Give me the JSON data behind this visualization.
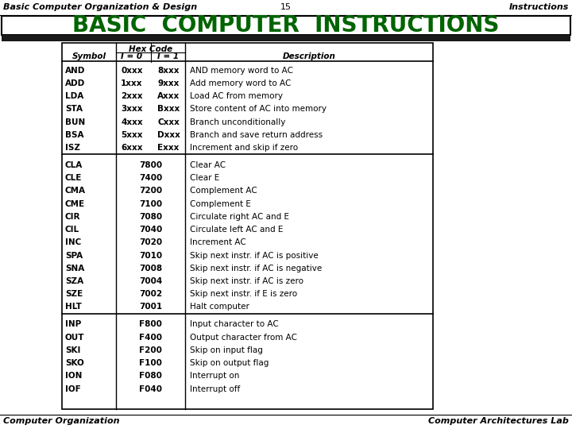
{
  "title_left": "Basic Computer Organization & Design",
  "title_center": "15",
  "title_right": "Instructions",
  "main_title": "BASIC  COMPUTER  INSTRUCTIONS",
  "main_title_color": "#006400",
  "footer_left": "Computer Organization",
  "footer_right": "Computer Architectures Lab",
  "section1": [
    [
      "AND",
      "0xxx",
      "8xxx",
      "AND memory word to AC"
    ],
    [
      "ADD",
      "1xxx",
      "9xxx",
      "Add memory word to AC"
    ],
    [
      "LDA",
      "2xxx",
      "Axxx",
      "Load AC from memory"
    ],
    [
      "STA",
      "3xxx",
      "Bxxx",
      "Store content of AC into memory"
    ],
    [
      "BUN",
      "4xxx",
      "Cxxx",
      "Branch unconditionally"
    ],
    [
      "BSA",
      "5xxx",
      "Dxxx",
      "Branch and save return address"
    ],
    [
      "ISZ",
      "6xxx",
      "Exxx",
      "Increment and skip if zero"
    ]
  ],
  "section2": [
    [
      "CLA",
      "7800",
      "Clear AC"
    ],
    [
      "CLE",
      "7400",
      "Clear E"
    ],
    [
      "CMA",
      "7200",
      "Complement AC"
    ],
    [
      "CME",
      "7100",
      "Complement E"
    ],
    [
      "CIR",
      "7080",
      "Circulate right AC and E"
    ],
    [
      "CIL",
      "7040",
      "Circulate left AC and E"
    ],
    [
      "INC",
      "7020",
      "Increment AC"
    ],
    [
      "SPA",
      "7010",
      "Skip next instr. if AC is positive"
    ],
    [
      "SNA",
      "7008",
      "Skip next instr. if AC is negative"
    ],
    [
      "SZA",
      "7004",
      "Skip next instr. if AC is zero"
    ],
    [
      "SZE",
      "7002",
      "Skip next instr. if E is zero"
    ],
    [
      "HLT",
      "7001",
      "Halt computer"
    ]
  ],
  "section3": [
    [
      "INP",
      "F800",
      "Input character to AC"
    ],
    [
      "OUT",
      "F400",
      "Output character from AC"
    ],
    [
      "SKI",
      "F200",
      "Skip on input flag"
    ],
    [
      "SKO",
      "F100",
      "Skip on output flag"
    ],
    [
      "ION",
      "F080",
      "Interrupt on"
    ],
    [
      "IOF",
      "F040",
      "Interrupt off"
    ]
  ],
  "bg_color": "#ffffff",
  "table_bg": "#ffffff",
  "dark_bar_color": "#1a1a1a",
  "border_color": "#000000",
  "main_title_fontsize": 20,
  "header_fontsize": 7.5,
  "data_fontsize": 7.5,
  "title_fontsize": 8
}
